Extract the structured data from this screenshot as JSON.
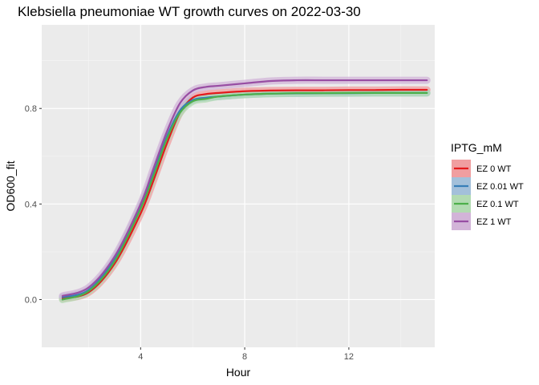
{
  "chart_data": {
    "type": "line",
    "title": "Klebsiella pneumoniae WT growth curves on 2022-03-30",
    "xlabel": "Hour",
    "ylabel": "OD600_fit",
    "xlim": [
      0.2,
      15.3
    ],
    "ylim": [
      -0.2,
      1.15
    ],
    "x_ticks": [
      4,
      8,
      12
    ],
    "y_ticks": [
      0.0,
      0.4,
      0.8
    ],
    "y_tick_labels": [
      "0.0",
      "0.4",
      "0.8"
    ],
    "grid": true,
    "background": "#ebebeb",
    "legend": {
      "title": "IPTG_mM",
      "position": "right"
    },
    "x": [
      1,
      2,
      3,
      4,
      4.5,
      5,
      5.5,
      6,
      6.5,
      7,
      8,
      9,
      10,
      11,
      12,
      13,
      14,
      15
    ],
    "series": [
      {
        "name": "EZ 0 WT",
        "color": "#e41a1c",
        "band": "#f09ea0",
        "values": [
          0.005,
          0.03,
          0.15,
          0.36,
          0.5,
          0.65,
          0.78,
          0.845,
          0.86,
          0.865,
          0.872,
          0.875,
          0.876,
          0.876,
          0.877,
          0.877,
          0.878,
          0.878
        ]
      },
      {
        "name": "EZ 0.01 WT",
        "color": "#377eb8",
        "band": "#a3c0da",
        "values": [
          0.01,
          0.04,
          0.17,
          0.39,
          0.53,
          0.68,
          0.79,
          0.835,
          0.845,
          0.85,
          0.858,
          0.862,
          0.863,
          0.864,
          0.864,
          0.865,
          0.865,
          0.865
        ]
      },
      {
        "name": "EZ 0.1 WT",
        "color": "#4daf4a",
        "band": "#b2dbb1",
        "values": [
          0.0,
          0.035,
          0.16,
          0.38,
          0.52,
          0.67,
          0.78,
          0.83,
          0.84,
          0.85,
          0.858,
          0.862,
          0.864,
          0.864,
          0.865,
          0.865,
          0.865,
          0.865
        ]
      },
      {
        "name": "EZ 1 WT",
        "color": "#984ea3",
        "band": "#d2b4d8",
        "values": [
          0.015,
          0.05,
          0.18,
          0.4,
          0.55,
          0.7,
          0.82,
          0.875,
          0.89,
          0.895,
          0.905,
          0.915,
          0.918,
          0.918,
          0.918,
          0.918,
          0.918,
          0.918
        ]
      }
    ]
  }
}
